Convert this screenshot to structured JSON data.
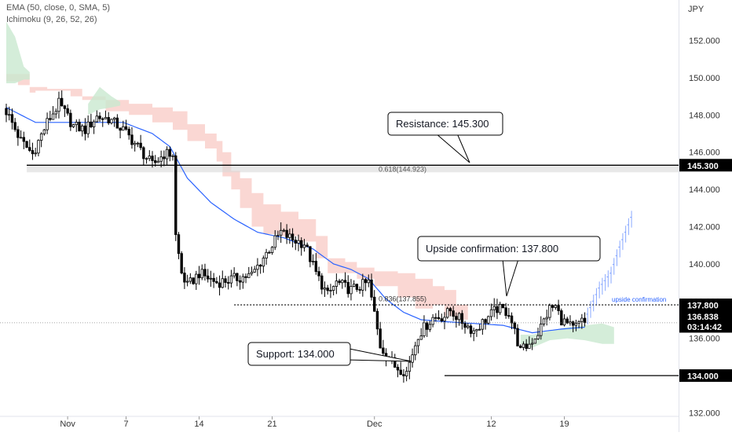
{
  "indicators": [
    "EMA (50, close, 0, SMA, 5)",
    "Ichimoku (9, 26, 52, 26)"
  ],
  "currency_label": "JPY",
  "colors": {
    "candle": "#000000",
    "ema": "#2962ff",
    "cloud_bear": "#f8c9c4",
    "cloud_bull": "#c9e8cf",
    "projection": "#2962ff",
    "confirmation_text": "#2962ff"
  },
  "chart_data": {
    "type": "candlestick",
    "ylim": [
      131.6,
      153.6
    ],
    "y_ticks": [
      132,
      134,
      136,
      138,
      140,
      142,
      144,
      146,
      148,
      150,
      152
    ],
    "y_tick_labels": [
      "132.000",
      "134.000",
      "136.000",
      "138.000",
      "140.000",
      "142.000",
      "144.000",
      "146.000",
      "148.000",
      "150.000",
      "152.000"
    ],
    "x_tick_labels": [
      "Nov",
      "7",
      "14",
      "21",
      "Dec",
      "12",
      "19"
    ],
    "x_tick_bar_index": [
      21,
      41,
      66,
      91,
      126,
      166,
      191
    ],
    "price_labels": {
      "resistance": "145.300",
      "confirmation": "137.800",
      "current": "136.838",
      "countdown": "03:14:42",
      "support": "134.000"
    },
    "levels": {
      "resistance": 145.3,
      "resistance_zone_low": 144.92,
      "confirmation": 137.8,
      "support": 134.0,
      "current": 136.838
    },
    "fib_labels": [
      "0.618(144.923)",
      "0.836(137.855)"
    ],
    "annotations": [
      "Resistance: 145.300",
      "Upside confirmation: 137.800",
      "Support: 134.000"
    ],
    "confirmation_tag": "upside confirmation",
    "close_anchors": [
      [
        0,
        148.2
      ],
      [
        5,
        146.6
      ],
      [
        9,
        145.9
      ],
      [
        14,
        147.6
      ],
      [
        18,
        148.6
      ],
      [
        23,
        147.4
      ],
      [
        27,
        147.2
      ],
      [
        31,
        147.9
      ],
      [
        35,
        147.8
      ],
      [
        40,
        147.2
      ],
      [
        45,
        146.3
      ],
      [
        50,
        145.3
      ],
      [
        54,
        145.9
      ],
      [
        57,
        145.9
      ],
      [
        58,
        141.5
      ],
      [
        60,
        139.5
      ],
      [
        62,
        138.8
      ],
      [
        66,
        139.5
      ],
      [
        72,
        139.0
      ],
      [
        78,
        139.2
      ],
      [
        84,
        139.4
      ],
      [
        90,
        140.8
      ],
      [
        94,
        141.7
      ],
      [
        98,
        141.3
      ],
      [
        102,
        141.1
      ],
      [
        106,
        139.5
      ],
      [
        110,
        138.3
      ],
      [
        113,
        139.0
      ],
      [
        118,
        138.6
      ],
      [
        124,
        139.0
      ],
      [
        128,
        135.6
      ],
      [
        133,
        134.5
      ],
      [
        137,
        134.2
      ],
      [
        141,
        136.2
      ],
      [
        146,
        137.1
      ],
      [
        150,
        137.2
      ],
      [
        152,
        137.5
      ],
      [
        156,
        136.9
      ],
      [
        160,
        136.4
      ],
      [
        164,
        137.0
      ],
      [
        168,
        137.6
      ],
      [
        172,
        137.4
      ],
      [
        176,
        135.3
      ],
      [
        179,
        135.7
      ],
      [
        182,
        136.3
      ],
      [
        186,
        137.6
      ],
      [
        188,
        137.7
      ],
      [
        190,
        137.0
      ],
      [
        194,
        136.5
      ],
      [
        197,
        136.9
      ],
      [
        198,
        136.84
      ]
    ],
    "ema_points": [
      [
        0,
        148.4
      ],
      [
        10,
        147.6
      ],
      [
        20,
        147.6
      ],
      [
        30,
        147.6
      ],
      [
        40,
        147.6
      ],
      [
        50,
        147.0
      ],
      [
        56,
        146.3
      ],
      [
        62,
        144.6
      ],
      [
        70,
        143.3
      ],
      [
        78,
        142.4
      ],
      [
        86,
        141.7
      ],
      [
        95,
        141.4
      ],
      [
        105,
        140.8
      ],
      [
        112,
        140.0
      ],
      [
        118,
        139.7
      ],
      [
        124,
        139.2
      ],
      [
        130,
        138.1
      ],
      [
        136,
        137.4
      ],
      [
        142,
        137.0
      ],
      [
        150,
        136.9
      ],
      [
        160,
        136.8
      ],
      [
        170,
        136.7
      ],
      [
        180,
        136.3
      ],
      [
        190,
        136.5
      ],
      [
        198,
        136.6
      ]
    ],
    "cloud_bear": [
      [
        0,
        150.2,
        149.8
      ],
      [
        4,
        150.2,
        149.6
      ],
      [
        8,
        149.5,
        149.2
      ],
      [
        10,
        149.5,
        149.3
      ],
      [
        14,
        149.4,
        149.3
      ],
      [
        22,
        149.4,
        149.0
      ],
      [
        26,
        149.0,
        148.8
      ],
      [
        34,
        148.8,
        148.2
      ],
      [
        42,
        148.6,
        148.0
      ],
      [
        50,
        148.4,
        147.6
      ],
      [
        57,
        148.2,
        147.2
      ],
      [
        62,
        147.5,
        146.6
      ],
      [
        68,
        147.0,
        146.2
      ],
      [
        72,
        146.6,
        145.5
      ],
      [
        74,
        146.0,
        144.7
      ],
      [
        77,
        145.0,
        144.0
      ],
      [
        80,
        144.6,
        143.0
      ],
      [
        84,
        143.8,
        142.0
      ],
      [
        88,
        143.2,
        141.6
      ],
      [
        94,
        142.8,
        141.5
      ],
      [
        100,
        142.4,
        141.2
      ],
      [
        106,
        141.5,
        140.3
      ],
      [
        110,
        140.3,
        139.5
      ],
      [
        116,
        140.1,
        139.5
      ],
      [
        120,
        139.8,
        139.2
      ],
      [
        126,
        139.6,
        138.8
      ],
      [
        134,
        139.5,
        138.2
      ],
      [
        140,
        139.2,
        137.6
      ],
      [
        146,
        138.8,
        137.8
      ],
      [
        150,
        138.6,
        137.2
      ],
      [
        154,
        137.8,
        137.0
      ],
      [
        158,
        137.0,
        136.8
      ]
    ],
    "cloud_bull": [
      [
        0,
        153.0,
        149.7
      ],
      [
        3,
        152.2,
        149.7
      ],
      [
        6,
        150.6,
        149.9
      ],
      [
        8,
        150.3,
        149.9
      ],
      [
        28,
        148.6,
        148.0
      ],
      [
        32,
        149.5,
        148.3
      ],
      [
        36,
        149.0,
        148.4
      ],
      [
        39,
        148.7,
        148.5
      ],
      [
        176,
        136.2,
        135.7
      ],
      [
        180,
        136.2,
        135.5
      ],
      [
        186,
        136.4,
        135.9
      ],
      [
        192,
        136.6,
        136.0
      ],
      [
        198,
        136.7,
        135.9
      ],
      [
        204,
        136.8,
        135.7
      ],
      [
        208,
        136.6,
        135.7
      ]
    ],
    "projection": [
      [
        199,
        137.2
      ],
      [
        203,
        138.6
      ],
      [
        207,
        139.4
      ],
      [
        210,
        140.8
      ],
      [
        214,
        142.4
      ]
    ]
  }
}
